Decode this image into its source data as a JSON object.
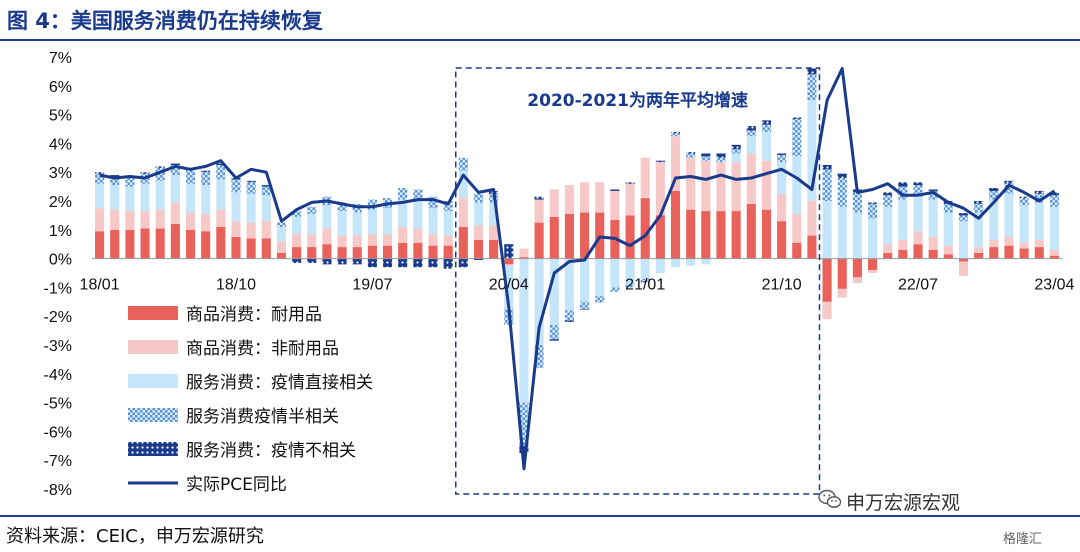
{
  "title": "图 4：美国服务消费仍在持续恢复",
  "source": "资料来源：CEIC，申万宏源研究",
  "watermark": "申万宏源宏观",
  "corner_logo": "格隆汇",
  "chart_data": {
    "type": "bar",
    "stacked": true,
    "title": "",
    "ylim": [
      -8,
      7
    ],
    "yticks": [
      "7%",
      "6%",
      "5%",
      "4%",
      "3%",
      "2%",
      "1%",
      "0%",
      "-1%",
      "-2%",
      "-3%",
      "-4%",
      "-5%",
      "-6%",
      "-7%",
      "-8%"
    ],
    "x_labels": [
      {
        "index": 0,
        "label": "18/01"
      },
      {
        "index": 9,
        "label": "18/10"
      },
      {
        "index": 18,
        "label": "19/07"
      },
      {
        "index": 27,
        "label": "20/04"
      },
      {
        "index": 36,
        "label": "21/01"
      },
      {
        "index": 45,
        "label": "21/10"
      },
      {
        "index": 54,
        "label": "22/07"
      },
      {
        "index": 63,
        "label": "23/04"
      }
    ],
    "annotation": "2020-2021为两年平均增速",
    "annotation_range": [
      24,
      48
    ],
    "legend": [
      {
        "key": "durable",
        "label": "商品消费：耐用品"
      },
      {
        "key": "nondurable",
        "label": "商品消费：非耐用品"
      },
      {
        "key": "svc_direct",
        "label": "服务消费：疫情直接相关"
      },
      {
        "key": "svc_semi",
        "label": "服务消费疫情半相关"
      },
      {
        "key": "svc_none",
        "label": "服务消费：疫情不相关"
      },
      {
        "key": "pce",
        "label": "实际PCE同比"
      }
    ],
    "colors": {
      "durable": "#e8615a",
      "nondurable": "#f7c8c8",
      "svc_direct": "#c5e6fa",
      "svc_semi": "#7fb2e5",
      "svc_none": "#1a3a8c",
      "pce": "#1a3a8c"
    },
    "series": {
      "durable": [
        0.95,
        1.0,
        1.0,
        1.05,
        1.05,
        1.2,
        1.0,
        0.95,
        1.1,
        0.75,
        0.7,
        0.7,
        0.2,
        0.4,
        0.4,
        0.5,
        0.4,
        0.4,
        0.45,
        0.45,
        0.55,
        0.55,
        0.45,
        0.45,
        1.1,
        0.65,
        0.65,
        -0.2,
        0.05,
        1.25,
        1.45,
        1.55,
        1.6,
        1.6,
        1.35,
        1.5,
        2.1,
        1.5,
        2.35,
        1.7,
        1.65,
        1.65,
        1.65,
        1.9,
        1.7,
        1.3,
        0.55,
        0.8,
        -1.5,
        -1.05,
        -0.65,
        -0.4,
        0.2,
        0.3,
        0.5,
        0.3,
        0.15,
        -0.1,
        0.2,
        0.4,
        0.45,
        0.35,
        0.4,
        0.1
      ],
      "nondurable": [
        0.8,
        0.7,
        0.65,
        0.6,
        0.65,
        0.75,
        0.6,
        0.6,
        0.6,
        0.55,
        0.55,
        0.6,
        0.4,
        0.45,
        0.45,
        0.55,
        0.4,
        0.4,
        0.4,
        0.4,
        0.55,
        0.5,
        0.4,
        0.35,
        1.0,
        0.5,
        0.5,
        -0.05,
        0.3,
        0.8,
        0.95,
        1.0,
        1.05,
        1.05,
        1.0,
        1.1,
        1.4,
        1.85,
        1.9,
        1.8,
        1.75,
        1.7,
        1.7,
        1.75,
        1.7,
        0.95,
        1.0,
        1.2,
        -0.6,
        -0.3,
        -0.2,
        -0.1,
        0.3,
        0.35,
        0.45,
        0.45,
        0.3,
        -0.5,
        0.2,
        0.25,
        0.3,
        0.2,
        0.25,
        0.2
      ],
      "svc_direct": [
        0.85,
        0.85,
        0.85,
        0.95,
        1.0,
        0.95,
        1.0,
        1.0,
        1.05,
        1.0,
        1.0,
        0.9,
        0.5,
        0.6,
        0.7,
        0.8,
        0.85,
        0.8,
        0.85,
        0.9,
        0.95,
        0.95,
        0.9,
        0.85,
        0.95,
        0.8,
        0.8,
        -1.5,
        -5.0,
        -3.0,
        -2.3,
        -1.8,
        -1.5,
        -1.3,
        -1.0,
        -0.9,
        -0.7,
        -0.5,
        -0.3,
        -0.25,
        -0.2,
        0.0,
        0.3,
        0.6,
        1.0,
        1.1,
        2.0,
        3.5,
        2.0,
        1.8,
        1.6,
        1.4,
        1.3,
        1.4,
        1.2,
        1.3,
        1.15,
        1.3,
        1.2,
        1.4,
        1.5,
        1.3,
        1.3,
        1.5
      ],
      "svc_semi": [
        0.35,
        0.3,
        0.3,
        0.35,
        0.45,
        0.35,
        0.5,
        0.45,
        0.5,
        0.45,
        0.4,
        0.3,
        0.15,
        0.2,
        0.25,
        0.3,
        0.3,
        0.3,
        0.35,
        0.35,
        0.4,
        0.4,
        0.4,
        0.35,
        0.45,
        0.3,
        0.3,
        -0.55,
        -1.5,
        -0.8,
        -0.5,
        -0.35,
        -0.25,
        -0.2,
        -0.15,
        -0.1,
        -0.08,
        0.0,
        0.1,
        0.15,
        0.15,
        0.15,
        0.15,
        0.2,
        0.25,
        0.25,
        1.3,
        0.9,
        1.1,
        1.0,
        0.7,
        0.5,
        0.4,
        0.45,
        0.4,
        0.3,
        0.3,
        0.2,
        0.3,
        0.3,
        0.35,
        0.25,
        0.3,
        0.4
      ],
      "svc_none": [
        0.05,
        0.05,
        0.05,
        0.05,
        0.05,
        0.05,
        0.05,
        0.05,
        0.05,
        0.05,
        0.05,
        0.05,
        0.0,
        -0.15,
        -0.15,
        -0.2,
        -0.2,
        -0.2,
        -0.3,
        -0.3,
        -0.3,
        -0.3,
        -0.3,
        -0.35,
        -0.3,
        -0.05,
        0.1,
        0.5,
        -0.25,
        0.1,
        -0.05,
        -0.05,
        -0.02,
        -0.02,
        0.05,
        0.05,
        -0.05,
        0.05,
        0.05,
        0.05,
        0.1,
        0.15,
        0.15,
        0.15,
        0.15,
        0.05,
        0.05,
        0.2,
        0.15,
        0.15,
        0.1,
        0.05,
        0.1,
        0.15,
        0.1,
        0.05,
        0.1,
        0.08,
        0.1,
        0.1,
        0.1,
        0.05,
        0.1,
        0.1
      ],
      "pce": [
        2.9,
        2.8,
        2.85,
        2.8,
        3.0,
        3.2,
        3.1,
        3.2,
        3.4,
        2.8,
        3.1,
        3.0,
        1.3,
        1.7,
        1.95,
        2.0,
        1.9,
        1.8,
        1.8,
        1.9,
        1.95,
        2.05,
        2.05,
        1.9,
        2.9,
        2.3,
        2.4,
        -1.7,
        -7.3,
        -2.4,
        -0.5,
        -0.1,
        -0.05,
        0.75,
        0.7,
        0.45,
        0.8,
        1.5,
        2.8,
        2.85,
        2.75,
        2.9,
        2.75,
        2.8,
        2.95,
        3.1,
        2.8,
        2.4,
        5.5,
        6.6,
        2.3,
        2.4,
        2.6,
        2.2,
        2.2,
        2.3,
        1.95,
        1.75,
        1.4,
        1.95,
        2.55,
        2.3,
        2.0,
        2.35
      ]
    }
  }
}
